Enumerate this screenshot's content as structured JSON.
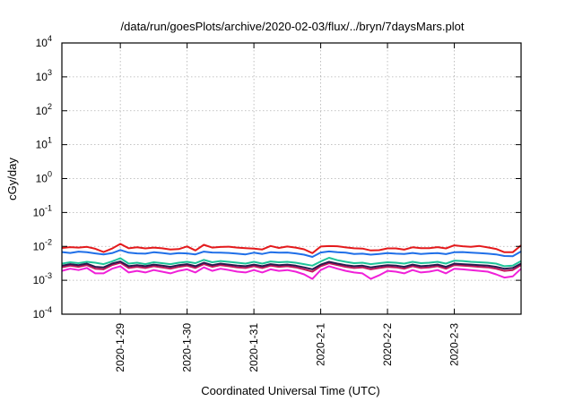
{
  "chart_data": {
    "type": "line",
    "title": "/data/run/goesPlots/archive/2020-02-03/flux/../bryn/7daysMars.plot",
    "xlabel": "Coordinated Universal Time (UTC)",
    "ylabel": "cGy/day",
    "yscale": "log",
    "ylim": [
      0.0001,
      10000
    ],
    "y_ticks": [
      {
        "value": 10000,
        "base": "10",
        "exp": "4"
      },
      {
        "value": 1000,
        "base": "10",
        "exp": "3"
      },
      {
        "value": 100,
        "base": "10",
        "exp": "2"
      },
      {
        "value": 10,
        "base": "10",
        "exp": "1"
      },
      {
        "value": 1,
        "base": "10",
        "exp": "0"
      },
      {
        "value": 0.1,
        "base": "10",
        "exp": "-1"
      },
      {
        "value": 0.01,
        "base": "10",
        "exp": "-2"
      },
      {
        "value": 0.001,
        "base": "10",
        "exp": "-3"
      },
      {
        "value": 0.0001,
        "base": "10",
        "exp": "-4"
      }
    ],
    "xlim": [
      "2020-01-28T03:00",
      "2020-02-04T00:00"
    ],
    "x_ticks": [
      {
        "value": "2020-01-29T00:00",
        "label": "2020-1-29"
      },
      {
        "value": "2020-01-30T00:00",
        "label": "2020-1-30"
      },
      {
        "value": "2020-01-31T00:00",
        "label": "2020-1-31"
      },
      {
        "value": "2020-02-01T00:00",
        "label": "2020-2-1"
      },
      {
        "value": "2020-02-02T00:00",
        "label": "2020-2-2"
      },
      {
        "value": "2020-02-03T00:00",
        "label": "2020-2-3"
      }
    ],
    "grid": true,
    "x": [
      "2020-01-28T03:00",
      "2020-01-28T06:00",
      "2020-01-28T09:00",
      "2020-01-28T12:00",
      "2020-01-28T15:00",
      "2020-01-28T18:00",
      "2020-01-28T21:00",
      "2020-01-29T00:00",
      "2020-01-29T03:00",
      "2020-01-29T06:00",
      "2020-01-29T09:00",
      "2020-01-29T12:00",
      "2020-01-29T15:00",
      "2020-01-29T18:00",
      "2020-01-29T21:00",
      "2020-01-30T00:00",
      "2020-01-30T03:00",
      "2020-01-30T06:00",
      "2020-01-30T09:00",
      "2020-01-30T12:00",
      "2020-01-30T15:00",
      "2020-01-30T18:00",
      "2020-01-30T21:00",
      "2020-01-31T00:00",
      "2020-01-31T03:00",
      "2020-01-31T06:00",
      "2020-01-31T09:00",
      "2020-01-31T12:00",
      "2020-01-31T15:00",
      "2020-01-31T18:00",
      "2020-01-31T21:00",
      "2020-02-01T00:00",
      "2020-02-01T03:00",
      "2020-02-01T06:00",
      "2020-02-01T09:00",
      "2020-02-01T12:00",
      "2020-02-01T15:00",
      "2020-02-01T18:00",
      "2020-02-01T21:00",
      "2020-02-02T00:00",
      "2020-02-02T03:00",
      "2020-02-02T06:00",
      "2020-02-02T09:00",
      "2020-02-02T12:00",
      "2020-02-02T15:00",
      "2020-02-02T18:00",
      "2020-02-02T21:00",
      "2020-02-03T00:00",
      "2020-02-03T03:00",
      "2020-02-03T06:00",
      "2020-02-03T09:00",
      "2020-02-03T12:00",
      "2020-02-03T15:00",
      "2020-02-03T18:00",
      "2020-02-03T21:00",
      "2020-02-04T00:00"
    ],
    "series": [
      {
        "color": "#e41a1c",
        "values": [
          0.009,
          0.0095,
          0.0092,
          0.0097,
          0.0085,
          0.0068,
          0.0086,
          0.0118,
          0.0088,
          0.0094,
          0.0087,
          0.0092,
          0.0088,
          0.0081,
          0.0083,
          0.01,
          0.0076,
          0.0111,
          0.0092,
          0.0096,
          0.0098,
          0.0092,
          0.0089,
          0.0086,
          0.0081,
          0.0103,
          0.009,
          0.0099,
          0.0092,
          0.0082,
          0.0063,
          0.0099,
          0.0102,
          0.0101,
          0.0093,
          0.0088,
          0.0086,
          0.0076,
          0.0077,
          0.0087,
          0.0087,
          0.008,
          0.0094,
          0.0089,
          0.0089,
          0.0095,
          0.0087,
          0.0107,
          0.0101,
          0.0097,
          0.0103,
          0.0093,
          0.0084,
          0.0067,
          0.0067,
          0.0107
        ]
      },
      {
        "color": "#1f6fe8",
        "values": [
          0.0068,
          0.0064,
          0.007,
          0.0067,
          0.0062,
          0.0058,
          0.0063,
          0.0078,
          0.0065,
          0.0062,
          0.0061,
          0.0067,
          0.0064,
          0.006,
          0.0063,
          0.0062,
          0.0058,
          0.007,
          0.0066,
          0.0065,
          0.0064,
          0.0061,
          0.0058,
          0.0065,
          0.006,
          0.0067,
          0.0065,
          0.0066,
          0.0062,
          0.0057,
          0.0049,
          0.0066,
          0.0071,
          0.0067,
          0.0065,
          0.006,
          0.0061,
          0.0057,
          0.006,
          0.0063,
          0.0061,
          0.006,
          0.0064,
          0.006,
          0.0062,
          0.0063,
          0.0059,
          0.0067,
          0.0068,
          0.0065,
          0.0063,
          0.0061,
          0.0058,
          0.0052,
          0.0051,
          0.0071
        ]
      },
      {
        "color": "#1fc49a",
        "values": [
          0.0031,
          0.0034,
          0.0032,
          0.0035,
          0.0033,
          0.003,
          0.0036,
          0.0045,
          0.0031,
          0.0033,
          0.003,
          0.0034,
          0.0032,
          0.003,
          0.0033,
          0.0035,
          0.0032,
          0.004,
          0.0034,
          0.0037,
          0.0035,
          0.0033,
          0.0031,
          0.0035,
          0.0031,
          0.0036,
          0.0034,
          0.0035,
          0.0033,
          0.003,
          0.0027,
          0.0036,
          0.0046,
          0.0039,
          0.0035,
          0.0032,
          0.0033,
          0.003,
          0.0032,
          0.0034,
          0.0033,
          0.0031,
          0.0035,
          0.0032,
          0.0033,
          0.0035,
          0.0031,
          0.0038,
          0.0037,
          0.0035,
          0.0034,
          0.0033,
          0.0031,
          0.0026,
          0.0027,
          0.0037
        ]
      },
      {
        "color": "#c2185b",
        "values": [
          0.0024,
          0.0027,
          0.0025,
          0.0028,
          0.0022,
          0.0021,
          0.0028,
          0.0033,
          0.0023,
          0.0025,
          0.0023,
          0.0026,
          0.0024,
          0.0022,
          0.0025,
          0.0027,
          0.0023,
          0.003,
          0.0025,
          0.0028,
          0.0026,
          0.0024,
          0.0023,
          0.0026,
          0.0023,
          0.0027,
          0.0025,
          0.0026,
          0.0024,
          0.0021,
          0.0018,
          0.0026,
          0.0032,
          0.0028,
          0.0025,
          0.0023,
          0.0024,
          0.0021,
          0.0023,
          0.0025,
          0.0024,
          0.0022,
          0.0026,
          0.0023,
          0.0024,
          0.0026,
          0.0022,
          0.0028,
          0.0027,
          0.0026,
          0.0025,
          0.0024,
          0.0022,
          0.0019,
          0.002,
          0.0028
        ]
      },
      {
        "color": "#2b1a4f",
        "values": [
          0.0027,
          0.003,
          0.0028,
          0.0031,
          0.0025,
          0.0024,
          0.0031,
          0.0036,
          0.0026,
          0.0028,
          0.0026,
          0.0029,
          0.0027,
          0.0025,
          0.0028,
          0.003,
          0.0026,
          0.0033,
          0.0028,
          0.0031,
          0.0029,
          0.0027,
          0.0026,
          0.0029,
          0.0026,
          0.003,
          0.0028,
          0.0029,
          0.0027,
          0.0024,
          0.0021,
          0.0029,
          0.0035,
          0.0031,
          0.0028,
          0.0026,
          0.0027,
          0.0024,
          0.0026,
          0.0028,
          0.0027,
          0.0025,
          0.0029,
          0.0026,
          0.0027,
          0.0029,
          0.0025,
          0.0031,
          0.003,
          0.0029,
          0.0028,
          0.0027,
          0.0025,
          0.0022,
          0.0023,
          0.0031
        ]
      },
      {
        "color": "#f020d8",
        "values": [
          0.0019,
          0.0022,
          0.002,
          0.0023,
          0.0016,
          0.0016,
          0.0022,
          0.0026,
          0.0017,
          0.0019,
          0.0017,
          0.002,
          0.0018,
          0.0016,
          0.0019,
          0.0021,
          0.0017,
          0.0024,
          0.0019,
          0.0022,
          0.002,
          0.0018,
          0.0017,
          0.002,
          0.0017,
          0.0021,
          0.0019,
          0.002,
          0.0018,
          0.0015,
          0.0011,
          0.002,
          0.0026,
          0.0022,
          0.0019,
          0.0017,
          0.0016,
          0.0011,
          0.0014,
          0.0019,
          0.0018,
          0.0016,
          0.002,
          0.0017,
          0.0018,
          0.002,
          0.0016,
          0.0022,
          0.0021,
          0.002,
          0.0019,
          0.0018,
          0.0015,
          0.0012,
          0.0013,
          0.0022
        ]
      }
    ]
  }
}
